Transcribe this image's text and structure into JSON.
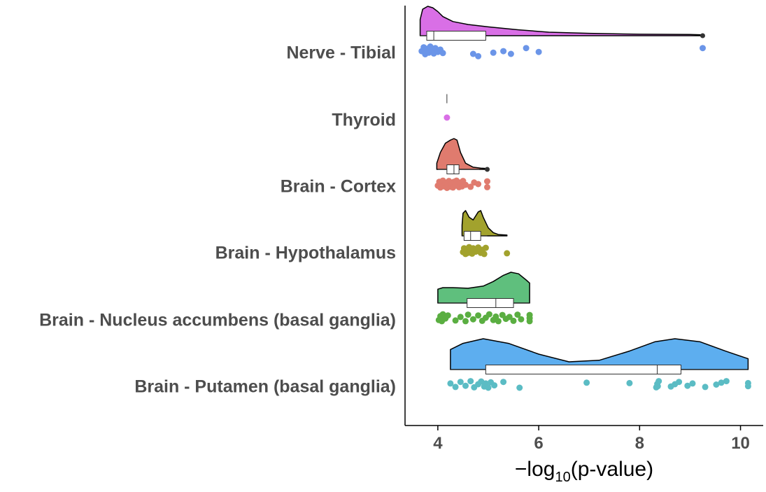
{
  "chart_data": {
    "type": "raincloud",
    "orientation": "horizontal",
    "xlabel_parts": {
      "prefix": "−log",
      "sub": "10",
      "suffix": "(p-value)"
    },
    "xlim": [
      3.35,
      10.45
    ],
    "xticks": [
      4,
      6,
      8,
      10
    ],
    "xtick_labels": [
      "4",
      "6",
      "8",
      "10"
    ],
    "grid": false,
    "legend": "none",
    "categories": [
      "Nerve - Tibial",
      "Thyroid",
      "Brain - Cortex",
      "Brain - Hypothalamus",
      "Brain - Nucleus accumbens (basal ganglia)",
      "Brain - Putamen (basal ganglia)"
    ],
    "series": [
      {
        "color": "#d96fe6",
        "point_color": "#6b95e8",
        "density_x": [
          3.65,
          3.7,
          3.8,
          3.9,
          4.0,
          4.1,
          4.3,
          4.6,
          5.0,
          5.6,
          6.2,
          7.0,
          8.0,
          9.0,
          9.25
        ],
        "density_h": [
          0.55,
          0.9,
          1.0,
          0.95,
          0.82,
          0.65,
          0.48,
          0.38,
          0.3,
          0.2,
          0.12,
          0.08,
          0.05,
          0.04,
          0.03
        ],
        "box": {
          "q1": 3.78,
          "median": 3.92,
          "q3": 4.95,
          "whisker_low": 3.65,
          "whisker_high": 4.95
        },
        "outliers": [
          9.25
        ],
        "points": [
          [
            3.68,
            0.1
          ],
          [
            3.72,
            -0.4
          ],
          [
            3.75,
            0.5
          ],
          [
            3.78,
            -0.2
          ],
          [
            3.82,
            0.3
          ],
          [
            3.85,
            -0.5
          ],
          [
            3.88,
            0.0
          ],
          [
            3.92,
            0.4
          ],
          [
            3.95,
            -0.3
          ],
          [
            4.0,
            0.2
          ],
          [
            4.05,
            -0.1
          ],
          [
            4.1,
            0.35
          ],
          [
            4.7,
            0.45
          ],
          [
            4.8,
            0.75
          ],
          [
            5.1,
            0.3
          ],
          [
            5.3,
            0.1
          ],
          [
            5.45,
            0.45
          ],
          [
            5.75,
            -0.3
          ],
          [
            6.0,
            0.2
          ],
          [
            9.25,
            -0.3
          ]
        ]
      },
      {
        "color": "#d96fe6",
        "point_color": "#d96fe6",
        "density_x": [],
        "density_h": [],
        "box": {
          "q1": 4.18,
          "median": 4.18,
          "q3": 4.18,
          "whisker_low": 4.18,
          "whisker_high": 4.18
        },
        "outliers": [],
        "points": [
          [
            4.18,
            0.0
          ]
        ]
      },
      {
        "color": "#e07b6e",
        "point_color": "#e07b6e",
        "density_x": [
          3.98,
          4.05,
          4.15,
          4.25,
          4.32,
          4.38,
          4.45,
          4.55,
          4.7,
          4.85,
          4.98
        ],
        "density_h": [
          0.2,
          0.55,
          0.85,
          0.95,
          1.0,
          0.95,
          0.55,
          0.2,
          0.07,
          0.04,
          0.03
        ],
        "box": {
          "q1": 4.18,
          "median": 4.32,
          "q3": 4.42,
          "whisker_low": 4.0,
          "whisker_high": 4.82
        },
        "outliers": [
          4.98
        ],
        "points": [
          [
            4.0,
            0.2
          ],
          [
            4.03,
            -0.3
          ],
          [
            4.05,
            0.45
          ],
          [
            4.08,
            0.0
          ],
          [
            4.1,
            -0.45
          ],
          [
            4.12,
            0.3
          ],
          [
            4.15,
            -0.15
          ],
          [
            4.18,
            0.5
          ],
          [
            4.2,
            0.1
          ],
          [
            4.22,
            -0.4
          ],
          [
            4.25,
            0.35
          ],
          [
            4.27,
            -0.05
          ],
          [
            4.3,
            0.45
          ],
          [
            4.32,
            -0.3
          ],
          [
            4.35,
            0.2
          ],
          [
            4.37,
            -0.45
          ],
          [
            4.4,
            0.05
          ],
          [
            4.42,
            0.4
          ],
          [
            4.45,
            -0.2
          ],
          [
            4.48,
            0.3
          ],
          [
            4.5,
            -0.4
          ],
          [
            4.55,
            0.1
          ],
          [
            4.65,
            0.35
          ],
          [
            4.72,
            -0.2
          ],
          [
            4.8,
            0.0
          ],
          [
            4.98,
            -0.35
          ],
          [
            4.98,
            0.4
          ]
        ]
      },
      {
        "color": "#a2a22d",
        "point_color": "#a2a22d",
        "density_x": [
          4.48,
          4.5,
          4.55,
          4.62,
          4.7,
          4.75,
          4.8,
          4.85,
          4.9,
          5.0,
          5.1,
          5.2,
          5.37
        ],
        "density_h": [
          0.4,
          0.85,
          0.95,
          0.7,
          0.6,
          0.75,
          0.9,
          0.95,
          0.7,
          0.3,
          0.12,
          0.05,
          0.03
        ],
        "box": {
          "q1": 4.52,
          "median": 4.65,
          "q3": 4.85,
          "whisker_low": 4.48,
          "whisker_high": 4.98
        },
        "outliers": [],
        "points": [
          [
            4.5,
            0.2
          ],
          [
            4.52,
            -0.3
          ],
          [
            4.55,
            0.45
          ],
          [
            4.58,
            -0.1
          ],
          [
            4.6,
            0.3
          ],
          [
            4.62,
            -0.45
          ],
          [
            4.65,
            0.05
          ],
          [
            4.68,
            0.4
          ],
          [
            4.7,
            -0.3
          ],
          [
            4.75,
            0.15
          ],
          [
            4.8,
            -0.4
          ],
          [
            4.85,
            0.3
          ],
          [
            4.88,
            -0.1
          ],
          [
            4.92,
            0.45
          ],
          [
            4.95,
            -0.35
          ],
          [
            5.37,
            0.35
          ]
        ]
      },
      {
        "color": "#5fbf7d",
        "point_color": "#5aae41",
        "density_x": [
          4.0,
          4.1,
          4.3,
          4.6,
          4.9,
          5.1,
          5.3,
          5.45,
          5.6,
          5.75,
          5.82
        ],
        "density_h": [
          0.45,
          0.5,
          0.5,
          0.48,
          0.55,
          0.7,
          0.9,
          1.0,
          0.95,
          0.75,
          0.65
        ],
        "box": {
          "q1": 4.58,
          "median": 5.15,
          "q3": 5.5,
          "whisker_low": 4.0,
          "whisker_high": 5.82
        },
        "outliers": [],
        "points": [
          [
            4.02,
            0.3
          ],
          [
            4.05,
            -0.2
          ],
          [
            4.08,
            0.45
          ],
          [
            4.1,
            -0.45
          ],
          [
            4.15,
            0.1
          ],
          [
            4.2,
            -0.3
          ],
          [
            4.35,
            0.35
          ],
          [
            4.45,
            -0.1
          ],
          [
            4.55,
            0.45
          ],
          [
            4.6,
            -0.4
          ],
          [
            4.7,
            0.2
          ],
          [
            4.8,
            -0.3
          ],
          [
            4.88,
            0.4
          ],
          [
            4.95,
            0.0
          ],
          [
            5.02,
            -0.45
          ],
          [
            5.1,
            0.3
          ],
          [
            5.15,
            -0.15
          ],
          [
            5.2,
            0.45
          ],
          [
            5.28,
            -0.35
          ],
          [
            5.35,
            0.15
          ],
          [
            5.42,
            -0.1
          ],
          [
            5.5,
            0.4
          ],
          [
            5.58,
            -0.4
          ],
          [
            5.65,
            0.2
          ],
          [
            5.82,
            0.45
          ],
          [
            5.82,
            -0.35
          ],
          [
            5.82,
            0.05
          ]
        ]
      },
      {
        "color": "#5daeef",
        "point_color": "#5bbcc4",
        "density_x": [
          4.25,
          4.5,
          4.9,
          5.4,
          6.0,
          6.6,
          7.2,
          7.8,
          8.3,
          8.7,
          9.2,
          9.7,
          10.15
        ],
        "density_h": [
          0.65,
          0.85,
          1.0,
          0.85,
          0.5,
          0.25,
          0.3,
          0.6,
          0.9,
          1.0,
          0.9,
          0.6,
          0.35
        ],
        "box": {
          "q1": 4.95,
          "median": 8.35,
          "q3": 8.82,
          "whisker_low": 4.25,
          "whisker_high": 10.15
        },
        "outliers": [],
        "points": [
          [
            4.25,
            -0.1
          ],
          [
            4.35,
            0.35
          ],
          [
            4.45,
            -0.3
          ],
          [
            4.55,
            0.2
          ],
          [
            4.65,
            -0.4
          ],
          [
            4.72,
            0.4
          ],
          [
            4.8,
            0.0
          ],
          [
            4.86,
            -0.35
          ],
          [
            4.92,
            0.3
          ],
          [
            4.95,
            -0.1
          ],
          [
            5.0,
            0.45
          ],
          [
            5.05,
            -0.25
          ],
          [
            5.12,
            0.15
          ],
          [
            5.3,
            -0.3
          ],
          [
            5.62,
            0.45
          ],
          [
            6.95,
            -0.2
          ],
          [
            7.8,
            -0.15
          ],
          [
            8.33,
            0.4
          ],
          [
            8.35,
            -0.05
          ],
          [
            8.36,
            0.25
          ],
          [
            8.38,
            -0.4
          ],
          [
            8.62,
            0.3
          ],
          [
            8.7,
            0.0
          ],
          [
            8.78,
            -0.3
          ],
          [
            8.95,
            0.2
          ],
          [
            9.05,
            -0.1
          ],
          [
            9.3,
            0.35
          ],
          [
            9.52,
            0.05
          ],
          [
            9.62,
            -0.2
          ],
          [
            9.72,
            -0.4
          ],
          [
            10.15,
            0.25
          ],
          [
            10.15,
            -0.15
          ]
        ]
      }
    ]
  }
}
